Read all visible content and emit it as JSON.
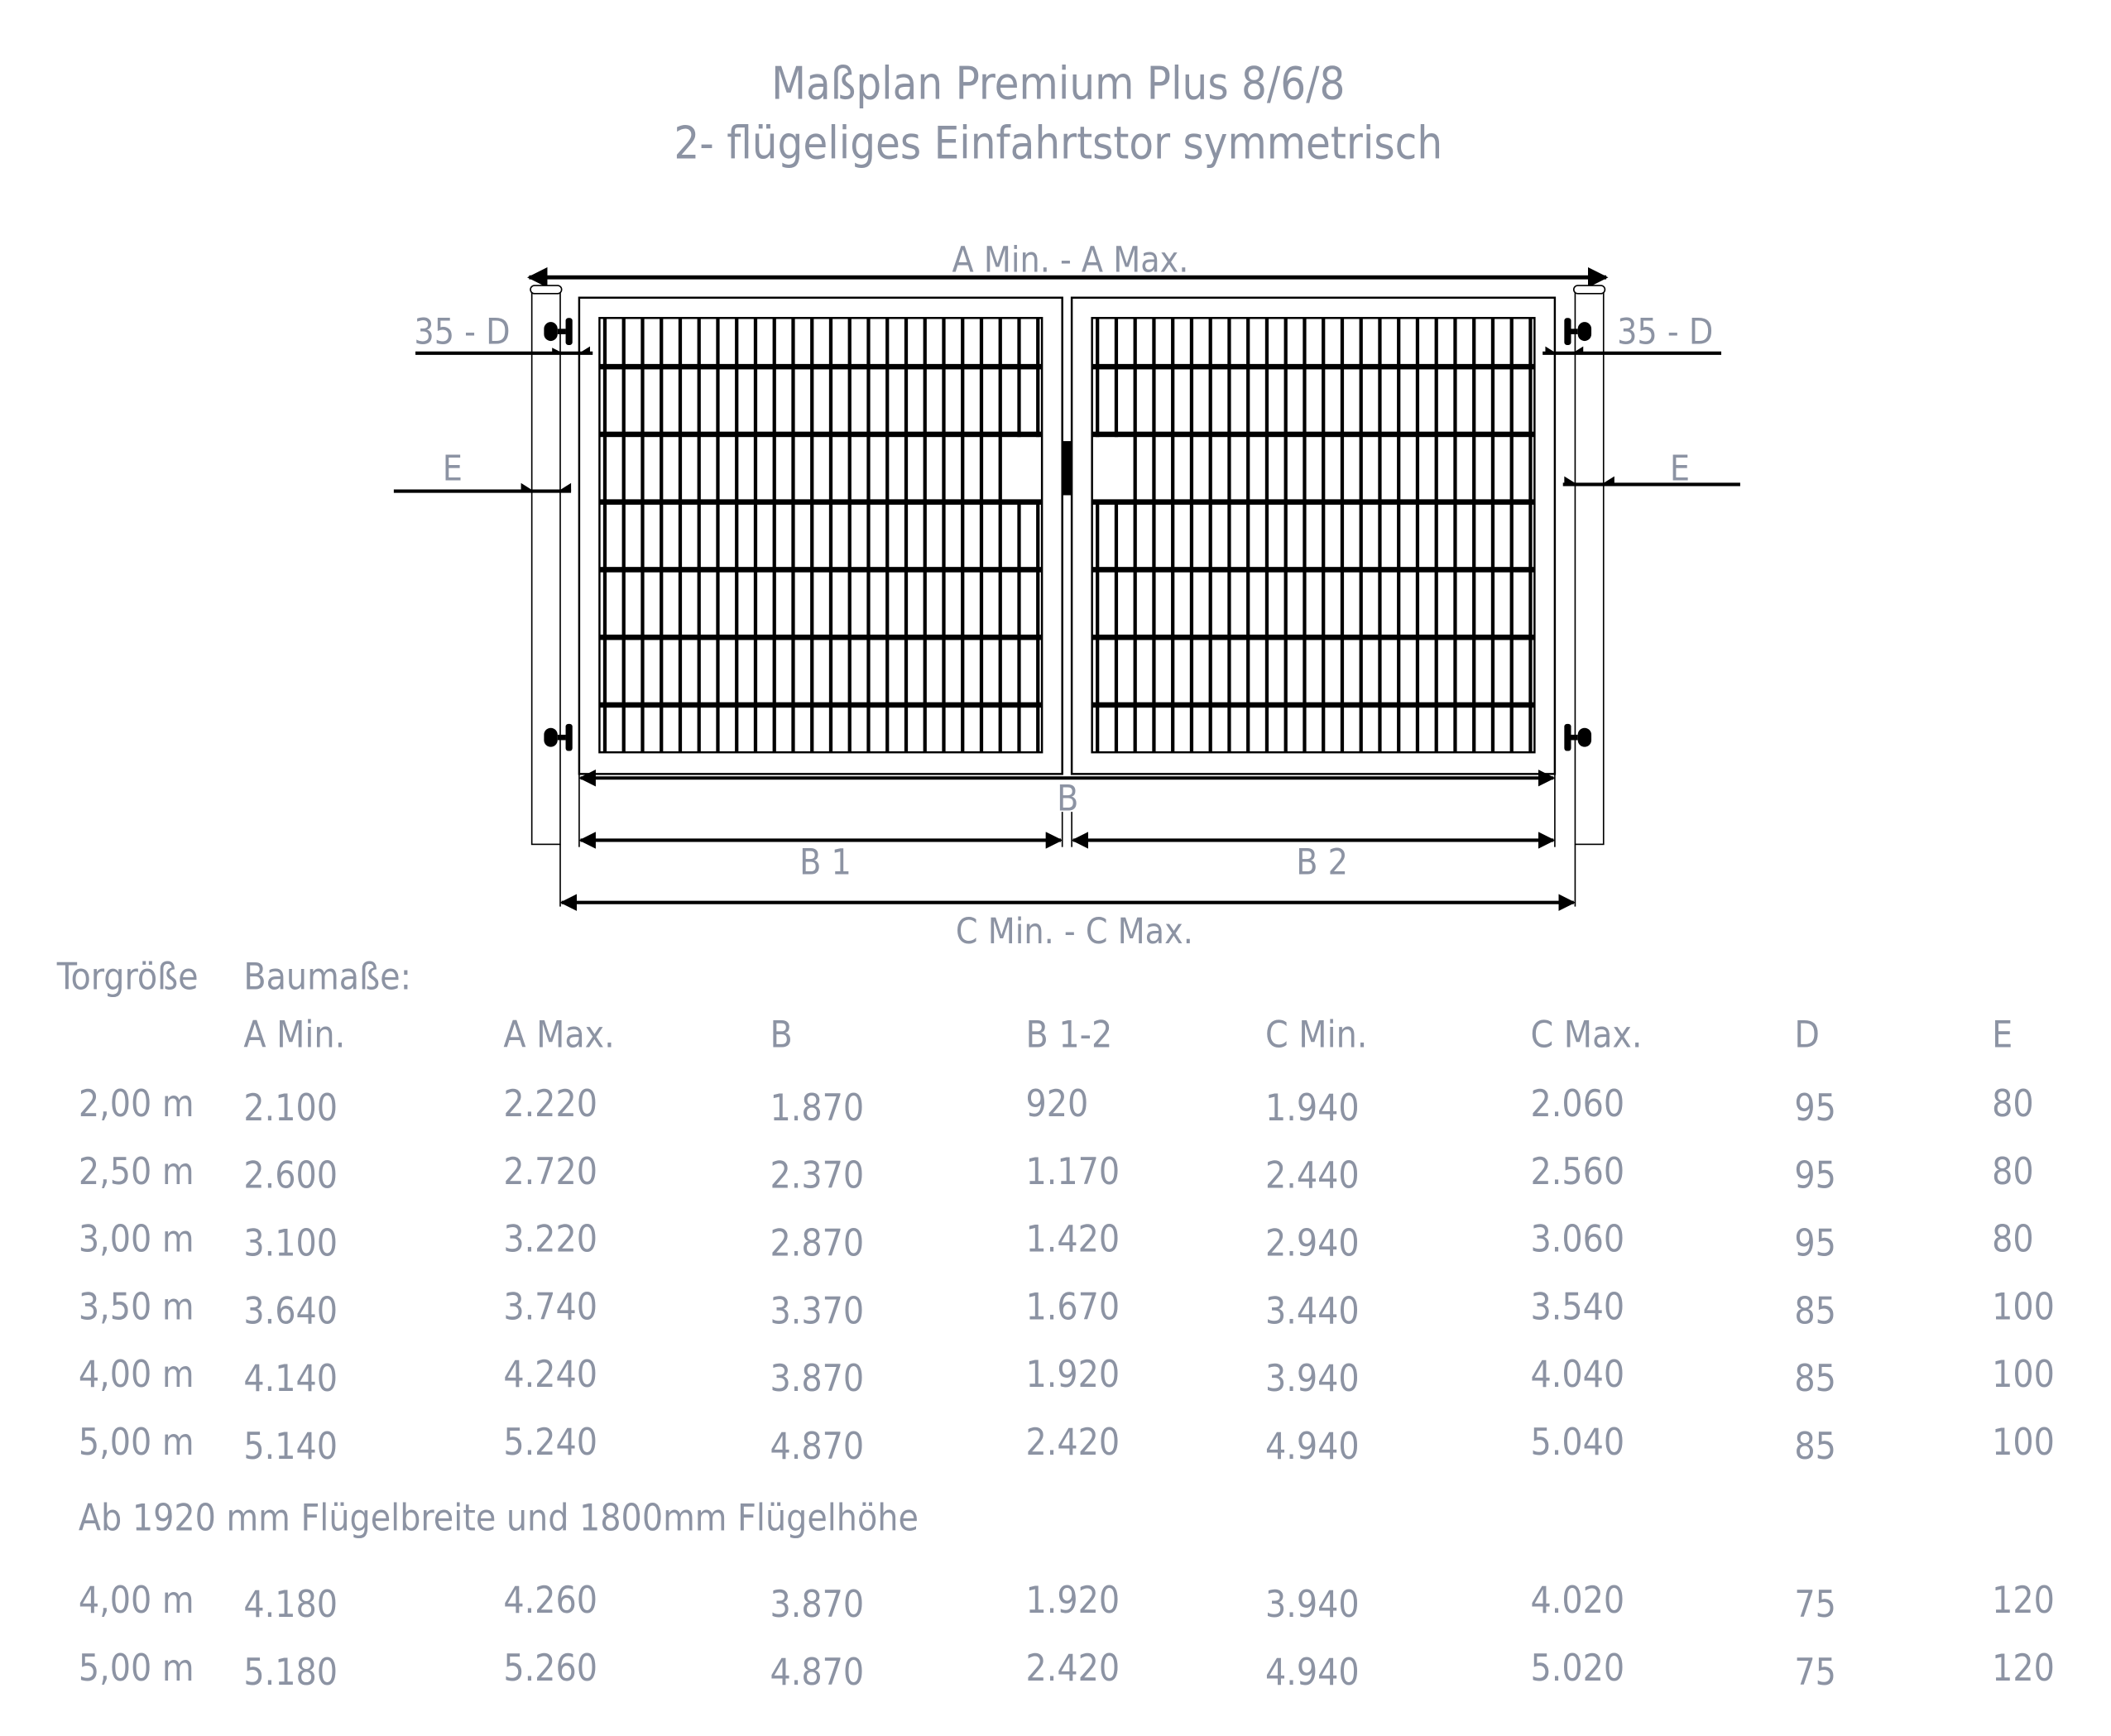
{
  "title": {
    "line1": "Maßplan Premium Plus 8/6/8",
    "line2": "2- flügeliges Einfahrtstor symmetrisch"
  },
  "diagram": {
    "a_label": "A Min. - A Max.",
    "d_left": "35 -  D",
    "d_right": "35 - D",
    "e_left": "E",
    "e_right": "E",
    "b_label": "B",
    "b1_label": "B 1",
    "b2_label": "B 2",
    "c_label": "C Min. - C Max."
  },
  "table": {
    "size_header": "Torgröße",
    "dims_header": "Baumaße:",
    "columns": [
      "A Min.",
      "A Max.",
      "B",
      "B 1-2",
      "C Min.",
      "C Max.",
      "D",
      "E"
    ],
    "rows": [
      [
        "2,00 m",
        "2.100",
        "2.220",
        "1.870",
        "920",
        "1.940",
        "2.060",
        "95",
        "80"
      ],
      [
        "2,50 m",
        "2.600",
        "2.720",
        "2.370",
        "1.170",
        "2.440",
        "2.560",
        "95",
        "80"
      ],
      [
        "3,00 m",
        "3.100",
        "3.220",
        "2.870",
        "1.420",
        "2.940",
        "3.060",
        "95",
        "80"
      ],
      [
        "3,50 m",
        "3.640",
        "3.740",
        "3.370",
        "1.670",
        "3.440",
        "3.540",
        "85",
        "100"
      ],
      [
        "4,00 m",
        "4.140",
        "4.240",
        "3.870",
        "1.920",
        "3.940",
        "4.040",
        "85",
        "100"
      ],
      [
        "5,00 m",
        "5.140",
        "5.240",
        "4.870",
        "2.420",
        "4.940",
        "5.040",
        "85",
        "100"
      ]
    ],
    "note": "Ab 1920 mm Flügelbreite und 1800mm Flügelhöhe",
    "extra_rows": [
      [
        "4,00 m",
        "4.180",
        "4.260",
        "3.870",
        "1.920",
        "3.940",
        "4.020",
        "75",
        "120"
      ],
      [
        "5,00 m",
        "5.180",
        "5.260",
        "4.870",
        "2.420",
        "4.940",
        "5.020",
        "75",
        "120"
      ]
    ]
  },
  "colors": {
    "text": "#8c93a3",
    "lines": "#000000"
  }
}
